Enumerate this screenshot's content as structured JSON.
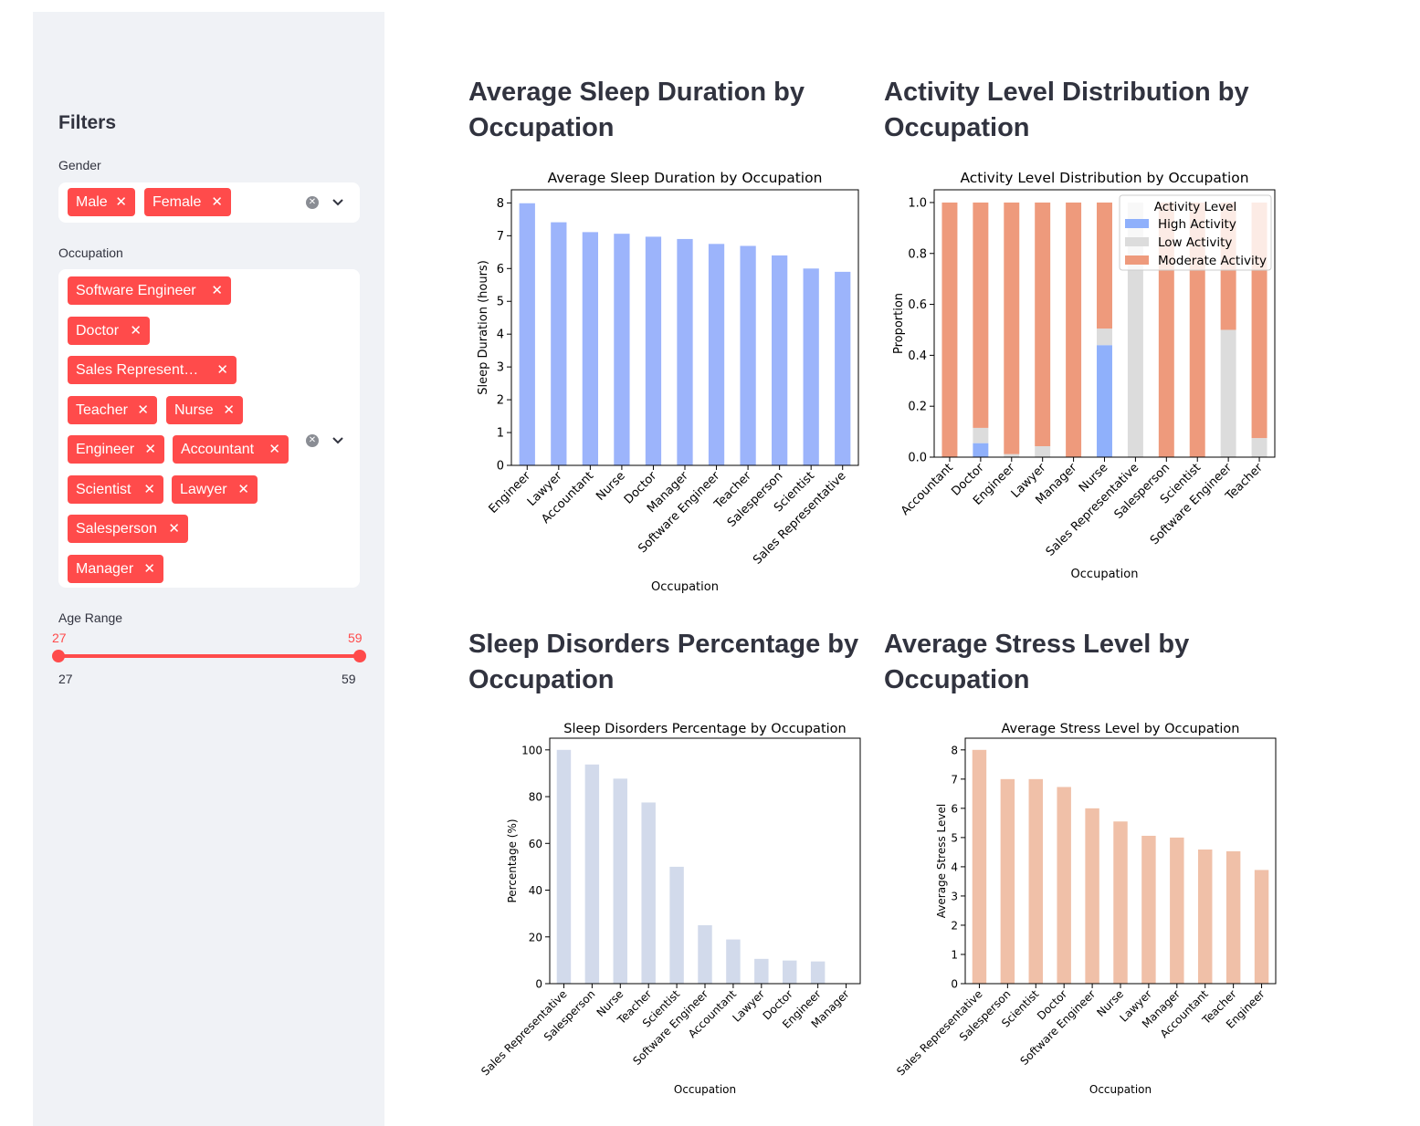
{
  "sidebar": {
    "title": "Filters",
    "gender": {
      "label": "Gender",
      "selected": [
        "Male",
        "Female"
      ]
    },
    "occupation": {
      "label": "Occupation",
      "selected": [
        "Software Engineer",
        "Doctor",
        "Sales Represent…",
        "Teacher",
        "Nurse",
        "Engineer",
        "Accountant",
        "Scientist",
        "Lawyer",
        "Salesperson",
        "Manager"
      ]
    },
    "age_range": {
      "label": "Age Range",
      "min": "27",
      "max": "59",
      "low": "27",
      "high": "59",
      "min_label": "27",
      "max_label": "59"
    }
  },
  "sections": {
    "sleep_duration": "Average Sleep Duration by Occupation",
    "activity": "Activity Level Distribution by Occupation",
    "disorders": "Sleep Disorders Percentage by Occupation",
    "stress": "Average Stress Level by Occupation"
  },
  "colors": {
    "accent": "#ff4b4b",
    "sleep_bar": "#9cb4fb",
    "high_activity": "#8fb0fb",
    "low_activity": "#dcdcdc",
    "moderate_activity": "#ee9a7c",
    "disorder_bar": "#d2daeb",
    "stress_bar": "#f0c0a8"
  },
  "chart_data": [
    {
      "type": "bar",
      "title": "Average Sleep Duration by Occupation",
      "xlabel": "Occupation",
      "ylabel": "Sleep Duration (hours)",
      "ylim": [
        0,
        8.4
      ],
      "yticks": [
        0,
        1,
        2,
        3,
        4,
        5,
        6,
        7,
        8
      ],
      "categories": [
        "Engineer",
        "Lawyer",
        "Accountant",
        "Nurse",
        "Doctor",
        "Manager",
        "Software Engineer",
        "Teacher",
        "Salesperson",
        "Scientist",
        "Sales Representative"
      ],
      "values": [
        7.99,
        7.41,
        7.11,
        7.06,
        6.97,
        6.9,
        6.75,
        6.69,
        6.4,
        6.0,
        5.9
      ]
    },
    {
      "type": "bar",
      "stacked": true,
      "title": "Activity Level Distribution by Occupation",
      "xlabel": "Occupation",
      "ylabel": "Proportion",
      "ylim": [
        0,
        1.05
      ],
      "yticks": [
        "0.0",
        "0.2",
        "0.4",
        "0.6",
        "0.8",
        "1.0"
      ],
      "legend_title": "Activity Level",
      "legend_position": "upper right",
      "categories": [
        "Accountant",
        "Doctor",
        "Engineer",
        "Lawyer",
        "Manager",
        "Nurse",
        "Sales Representative",
        "Salesperson",
        "Scientist",
        "Software Engineer",
        "Teacher"
      ],
      "series": [
        {
          "name": "High Activity",
          "values": [
            0,
            0.055,
            0,
            0,
            0,
            0.44,
            0,
            0,
            0,
            0,
            0
          ]
        },
        {
          "name": "Low Activity",
          "values": [
            0,
            0.06,
            0.012,
            0.043,
            0,
            0.065,
            1.0,
            0,
            0,
            0.5,
            0.075
          ]
        },
        {
          "name": "Moderate Activity",
          "values": [
            1.0,
            0.885,
            0.988,
            0.957,
            1.0,
            0.495,
            0,
            1.0,
            1.0,
            0.5,
            0.925
          ]
        }
      ]
    },
    {
      "type": "bar",
      "title": "Sleep Disorders Percentage by Occupation",
      "xlabel": "Occupation",
      "ylabel": "Percentage (%)",
      "ylim": [
        0,
        105
      ],
      "yticks": [
        0,
        20,
        40,
        60,
        80,
        100
      ],
      "categories": [
        "Sales Representative",
        "Salesperson",
        "Nurse",
        "Teacher",
        "Scientist",
        "Software Engineer",
        "Accountant",
        "Lawyer",
        "Doctor",
        "Engineer",
        "Manager"
      ],
      "values": [
        100,
        93.75,
        87.7,
        77.5,
        50,
        25,
        18.9,
        10.6,
        9.9,
        9.5,
        0
      ]
    },
    {
      "type": "bar",
      "title": "Average Stress Level by Occupation",
      "xlabel": "Occupation",
      "ylabel": "Average Stress Level",
      "ylim": [
        0,
        8.4
      ],
      "yticks": [
        0,
        1,
        2,
        3,
        4,
        5,
        6,
        7,
        8
      ],
      "categories": [
        "Sales Representative",
        "Salesperson",
        "Scientist",
        "Doctor",
        "Software Engineer",
        "Nurse",
        "Lawyer",
        "Manager",
        "Accountant",
        "Teacher",
        "Engineer"
      ],
      "values": [
        8.0,
        7.0,
        7.0,
        6.73,
        6.0,
        5.55,
        5.06,
        5.0,
        4.59,
        4.53,
        3.89
      ]
    }
  ]
}
